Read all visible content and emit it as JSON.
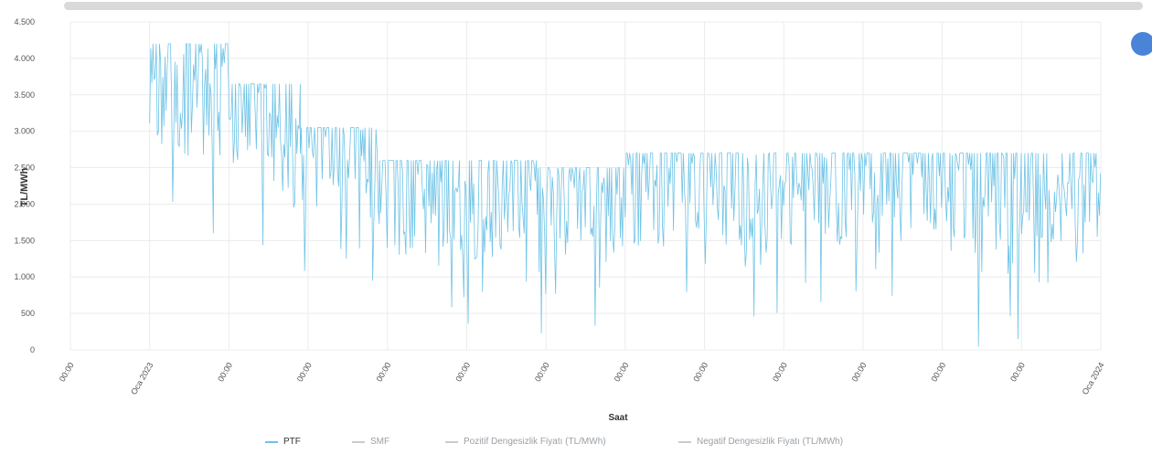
{
  "chart_data": {
    "type": "line",
    "ylabel": "TL/MWh",
    "xlabel": "Saat",
    "ylim": [
      0,
      4500
    ],
    "y_ticks": [
      0,
      500,
      1000,
      1500,
      2000,
      2500,
      3000,
      3500,
      4000,
      4500
    ],
    "y_tick_labels": [
      "0",
      "500",
      "1.000",
      "1.500",
      "2.000",
      "2.500",
      "3.000",
      "3.500",
      "4.000",
      "4.500"
    ],
    "x_tick_labels": [
      "00:00",
      "Oca 2023",
      "00:00",
      "00:00",
      "00:00",
      "00:00",
      "00:00",
      "00:00",
      "00:00",
      "00:00",
      "00:00",
      "00:00",
      "00:00",
      "Oca 2024"
    ],
    "grid": true,
    "legend_position": "bottom",
    "series": [
      {
        "name": "PTF",
        "color": "#6ec3e6",
        "segments": [
          {
            "x0": 0.0,
            "x1": 1.0,
            "cap": 4200,
            "base": 3400,
            "low": 1500
          },
          {
            "x0": 1.0,
            "x1": 1.9,
            "cap": 3650,
            "base": 2950,
            "low": 1200
          },
          {
            "x0": 1.9,
            "x1": 2.9,
            "cap": 3050,
            "base": 2350,
            "low": 500
          },
          {
            "x0": 2.9,
            "x1": 3.7,
            "cap": 2600,
            "base": 2000,
            "low": 0
          },
          {
            "x0": 3.7,
            "x1": 4.9,
            "cap": 2600,
            "base": 1900,
            "low": 200
          },
          {
            "x0": 4.9,
            "x1": 6.0,
            "cap": 2500,
            "base": 1850,
            "low": 100
          },
          {
            "x0": 6.0,
            "x1": 7.5,
            "cap": 2700,
            "base": 2050,
            "low": 400
          },
          {
            "x0": 7.5,
            "x1": 8.8,
            "cap": 2700,
            "base": 2100,
            "low": 300
          },
          {
            "x0": 8.8,
            "x1": 10.0,
            "cap": 2700,
            "base": 2250,
            "low": 500
          },
          {
            "x0": 10.0,
            "x1": 11.0,
            "cap": 2700,
            "base": 2050,
            "low": 0
          },
          {
            "x0": 11.0,
            "x1": 12.0,
            "cap": 2700,
            "base": 2000,
            "low": 800
          }
        ]
      },
      {
        "name": "SMF",
        "color": "#c7ccd1"
      },
      {
        "name": "Pozitif Dengesizlik Fiyatı (TL/MWh)",
        "color": "#c7ccd1"
      },
      {
        "name": "Negatif Dengesizlik Fiyatı (TL/MWh)",
        "color": "#c7ccd1"
      }
    ]
  },
  "legend": [
    {
      "label": "PTF",
      "color": "#6ec3e6",
      "active": true
    },
    {
      "label": "SMF",
      "color": "#c7ccd1",
      "active": false
    },
    {
      "label": "Pozitif Dengesizlik Fiyatı (TL/MWh)",
      "color": "#c7ccd1",
      "active": false
    },
    {
      "label": "Negatif Dengesizlik Fiyatı (TL/MWh)",
      "color": "#c7ccd1",
      "active": false
    }
  ]
}
